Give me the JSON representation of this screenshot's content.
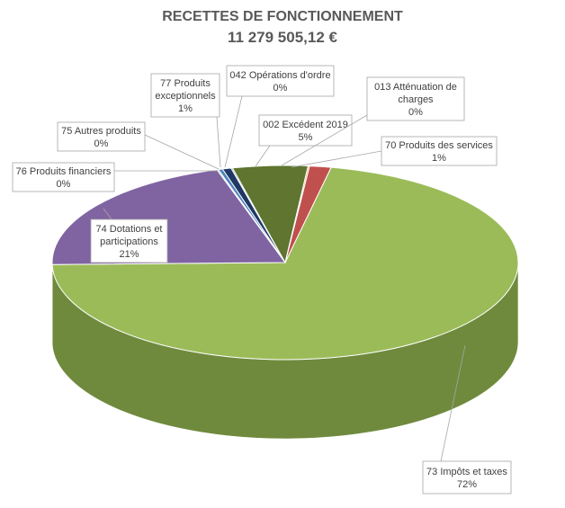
{
  "chart_data": {
    "type": "pie",
    "title": "RECETTES DE FONCTIONNEMENT",
    "subtitle": "11 279 505,12 €",
    "slices": [
      {
        "name": "70 Produits des services",
        "percent_label": "1%",
        "value": 1.5,
        "color": "#c0504d",
        "side": "#7a2f2d"
      },
      {
        "name": "73 Impôts et taxes",
        "percent_label": "72%",
        "value": 71.5,
        "color": "#9bbb59",
        "side": "#6f8a3d"
      },
      {
        "name": "74 Dotations et participations",
        "percent_label": "21%",
        "value": 20.6,
        "color": "#8064a2",
        "side": "#5a4673"
      },
      {
        "name": "76 Produits financiers",
        "percent_label": "0%",
        "value": 0.1,
        "color": "#4bacc6",
        "side": "#2f7a8d"
      },
      {
        "name": "75 Autres produits",
        "percent_label": "0%",
        "value": 0.3,
        "color": "#4f81bd",
        "side": "#365b86"
      },
      {
        "name": "77 Produits exceptionnels",
        "percent_label": "1%",
        "value": 0.6,
        "color": "#1f3864",
        "side": "#131f38"
      },
      {
        "name": "042 Opérations d'ordre",
        "percent_label": "0%",
        "value": 0.1,
        "color": "#7f7f7f",
        "side": "#595959"
      },
      {
        "name": "002 Excédent 2019",
        "percent_label": "5%",
        "value": 5.2,
        "color": "#5f7530",
        "side": "#3f4f1f"
      },
      {
        "name": "013 Atténuation de charges",
        "percent_label": "0%",
        "value": 0.1,
        "color": "#f79646",
        "side": "#b46a2d"
      }
    ]
  }
}
